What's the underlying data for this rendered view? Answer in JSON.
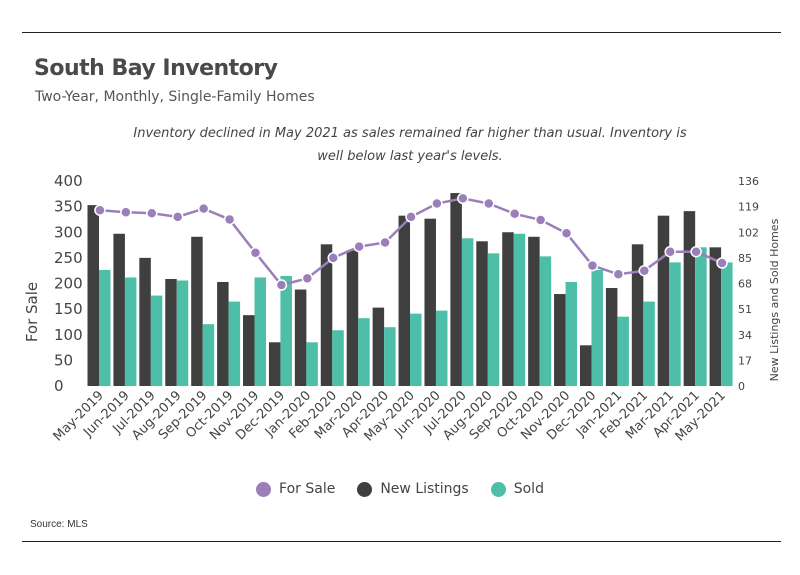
{
  "title": "South Bay Inventory",
  "subtitle": "Two-Year, Monthly, Single-Family Homes",
  "annotation": "Inventory declined in May 2021 as sales remained far higher than usual. Inventory is well below last year's levels.",
  "source": "Source:  MLS",
  "colors": {
    "for_sale": "#9b7fba",
    "new_listings": "#3f3f3f",
    "sold": "#4dbfa8"
  },
  "chart_data": {
    "type": "bar",
    "title": "South Bay Inventory",
    "subtitle": "Two-Year, Monthly, Single-Family Homes",
    "categories": [
      "May-2019",
      "Jun-2019",
      "Jul-2019",
      "Aug-2019",
      "Sep-2019",
      "Oct-2019",
      "Nov-2019",
      "Dec-2019",
      "Jan-2020",
      "Feb-2020",
      "Mar-2020",
      "Apr-2020",
      "May-2020",
      "Jun-2020",
      "Jul-2020",
      "Aug-2020",
      "Sep-2020",
      "Oct-2020",
      "Nov-2020",
      "Dec-2020",
      "Jan-2021",
      "Feb-2021",
      "Mar-2021",
      "Apr-2021",
      "May-2021"
    ],
    "y_left": {
      "label": "For Sale",
      "ylim": [
        0,
        400
      ],
      "ticks": [
        "0",
        "50",
        "100",
        "150",
        "200",
        "250",
        "300",
        "350",
        "400"
      ]
    },
    "y_right": {
      "label": "New Listings and Sold Homes",
      "ylim": [
        0,
        136
      ],
      "ticks": [
        "0",
        "17",
        "34",
        "51",
        "68",
        "85",
        "102",
        "119",
        "136"
      ]
    },
    "series": [
      {
        "name": "For Sale",
        "kind": "line",
        "axis": "left",
        "values": [
          343,
          339,
          337,
          330,
          346,
          325,
          260,
          197,
          210,
          250,
          272,
          280,
          330,
          356,
          366,
          356,
          336,
          324,
          298,
          235,
          218,
          225,
          262,
          262,
          240
        ]
      },
      {
        "name": "New Listings",
        "kind": "bar",
        "axis": "right",
        "values": [
          120,
          101,
          85,
          71,
          99,
          69,
          47,
          29,
          64,
          94,
          90,
          52,
          113,
          111,
          128,
          96,
          102,
          99,
          61,
          27,
          65,
          94,
          113,
          116,
          92
        ]
      },
      {
        "name": "Sold",
        "kind": "bar",
        "axis": "right",
        "values": [
          77,
          72,
          60,
          70,
          41,
          56,
          72,
          73,
          29,
          37,
          45,
          39,
          48,
          50,
          98,
          88,
          101,
          86,
          69,
          77,
          46,
          56,
          82,
          92,
          82
        ]
      }
    ],
    "legend": {
      "position": "bottom",
      "entries": [
        "For Sale",
        "New Listings",
        "Sold"
      ]
    },
    "grid": false
  }
}
